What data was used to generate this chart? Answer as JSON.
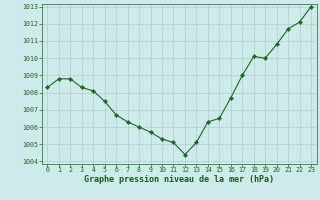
{
  "x": [
    0,
    1,
    2,
    3,
    4,
    5,
    6,
    7,
    8,
    9,
    10,
    11,
    12,
    13,
    14,
    15,
    16,
    17,
    18,
    19,
    20,
    21,
    22,
    23
  ],
  "y": [
    1008.3,
    1008.8,
    1008.8,
    1008.3,
    1008.1,
    1007.5,
    1006.7,
    1006.3,
    1006.0,
    1005.7,
    1005.3,
    1005.1,
    1004.4,
    1005.1,
    1006.3,
    1006.5,
    1007.7,
    1009.0,
    1010.1,
    1010.0,
    1010.8,
    1011.7,
    1012.1,
    1013.0
  ],
  "line_color": "#1a6b1a",
  "marker": "D",
  "marker_size": 2.2,
  "bg_color": "#ceeaea",
  "grid_color": "#b0cccc",
  "xlabel": "Graphe pression niveau de la mer (hPa)",
  "xlabel_color": "#1a5c1a",
  "tick_color": "#1a6b1a",
  "ylim": [
    1004,
    1013
  ],
  "xlim": [
    -0.5,
    23.5
  ],
  "yticks": [
    1004,
    1005,
    1006,
    1007,
    1008,
    1009,
    1010,
    1011,
    1012,
    1013
  ],
  "xticks": [
    0,
    1,
    2,
    3,
    4,
    5,
    6,
    7,
    8,
    9,
    10,
    11,
    12,
    13,
    14,
    15,
    16,
    17,
    18,
    19,
    20,
    21,
    22,
    23
  ],
  "tick_fontsize": 4.8,
  "xlabel_fontsize": 6.0
}
